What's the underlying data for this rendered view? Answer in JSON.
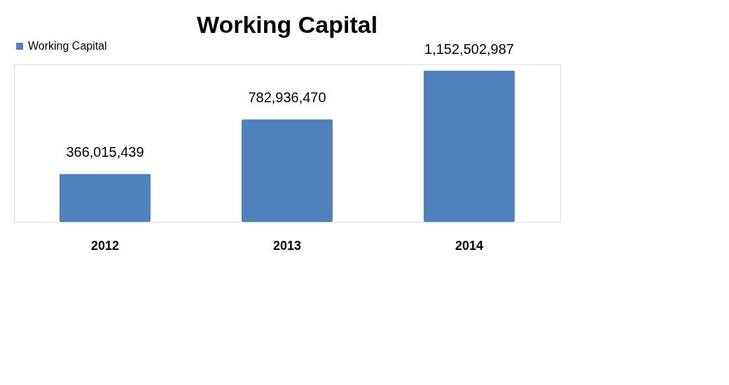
{
  "chart_data": {
    "type": "bar",
    "title": "Working Capital",
    "categories": [
      "2012",
      "2013",
      "2014"
    ],
    "series": [
      {
        "name": "Working Capital",
        "color": "#4f81bd",
        "values": [
          366015439,
          782936470,
          1152502987
        ],
        "value_labels": [
          "366,015,439",
          "782,936,470",
          "1,152,502,987"
        ]
      }
    ],
    "legend": "top",
    "grid": false
  }
}
